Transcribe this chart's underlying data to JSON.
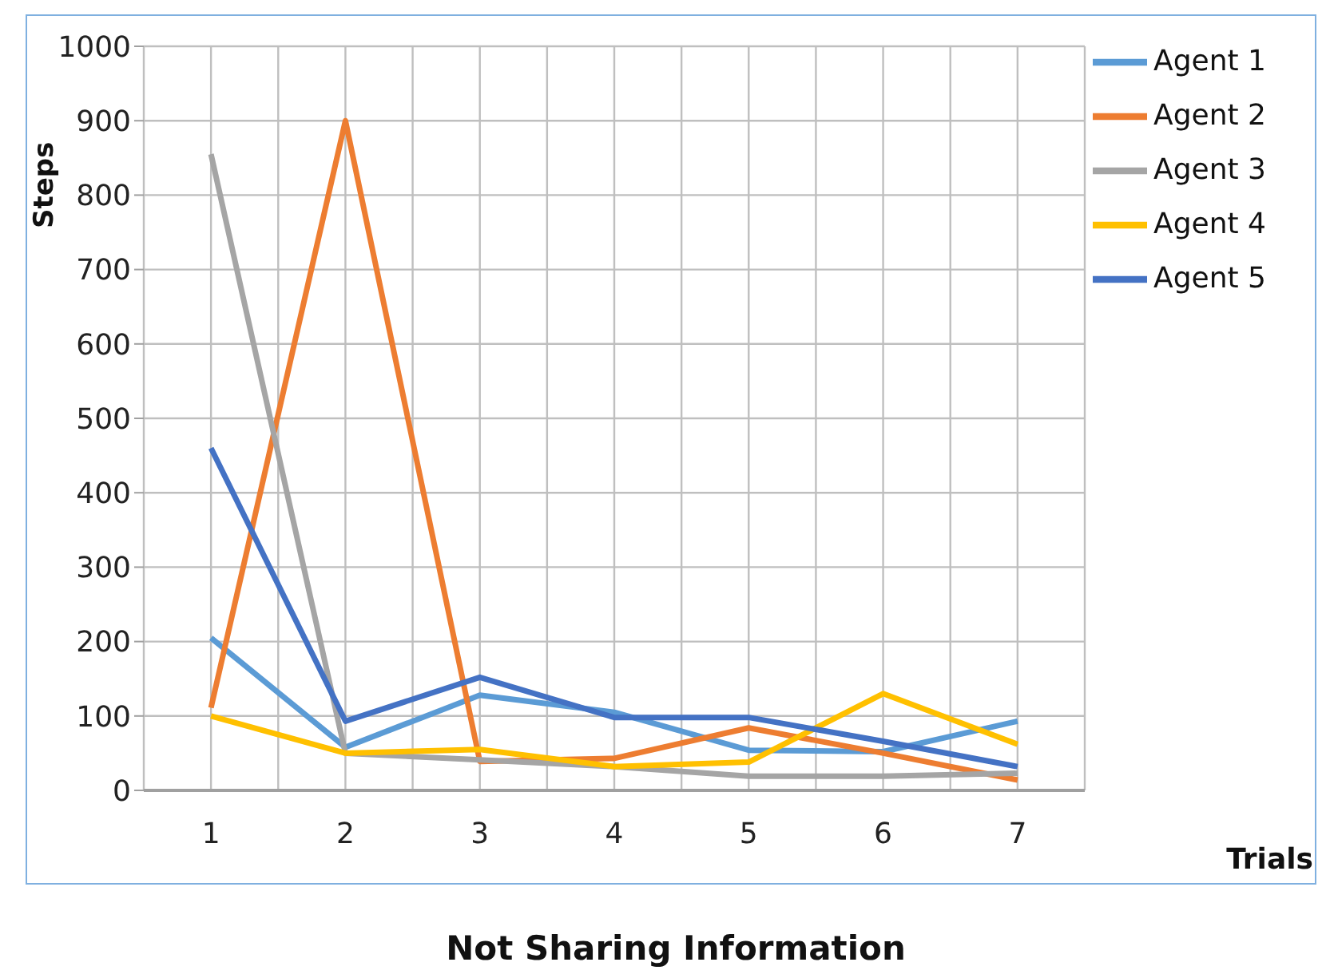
{
  "chart_data": {
    "type": "line",
    "title": "Not Sharing Information",
    "xlabel": "Trials",
    "ylabel": "Steps",
    "categories": [
      "1",
      "2",
      "3",
      "4",
      "5",
      "6",
      "7"
    ],
    "series": [
      {
        "name": "Agent 1",
        "color": "#5b9bd5",
        "values": [
          205,
          58,
          128,
          105,
          54,
          52,
          93
        ]
      },
      {
        "name": "Agent 2",
        "color": "#ed7d31",
        "values": [
          111,
          900,
          39,
          43,
          84,
          50,
          14
        ]
      },
      {
        "name": "Agent 3",
        "color": "#a5a5a5",
        "values": [
          855,
          50,
          41,
          32,
          19,
          19,
          23
        ]
      },
      {
        "name": "Agent 4",
        "color": "#ffc000",
        "values": [
          100,
          50,
          55,
          32,
          38,
          130,
          62
        ]
      },
      {
        "name": "Agent 5",
        "color": "#4472c4",
        "values": [
          460,
          93,
          152,
          98,
          98,
          66,
          32
        ]
      }
    ],
    "ylim": [
      0,
      1000
    ],
    "yticks": [
      0,
      100,
      200,
      300,
      400,
      500,
      600,
      700,
      800,
      900,
      1000
    ],
    "grid": true,
    "legend": "top right",
    "marker": "none",
    "line_style": "solid"
  }
}
